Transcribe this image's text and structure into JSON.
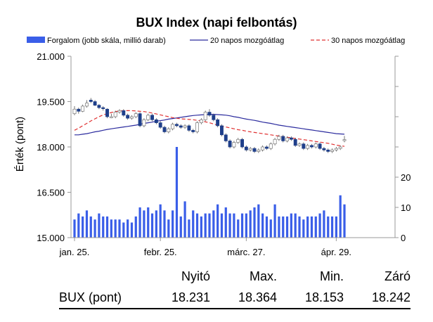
{
  "chart_data": {
    "type": "candlestick",
    "title": "BUX Index (napi felbontás)",
    "ylabel": "Érték (pont)",
    "left_axis": {
      "ticks": [
        "21.000",
        "19.500",
        "18.000",
        "16.500",
        "15.000"
      ],
      "tick_values": [
        21000,
        19500,
        18000,
        16500,
        15000
      ],
      "ylim": [
        15000,
        21000
      ]
    },
    "right_axis": {
      "ticks": [
        "20",
        "10",
        "0"
      ],
      "tick_values": [
        20,
        10,
        0
      ],
      "ylim": [
        0,
        60
      ]
    },
    "x_ticks": [
      "jan. 25.",
      "febr. 25.",
      "márc. 27.",
      "ápr. 29."
    ],
    "x_tick_indices": [
      0,
      21,
      42,
      64
    ],
    "legend": [
      {
        "label": "Forgalom (jobb skála, millió darab)",
        "kind": "bar",
        "color": "#3a5ee8"
      },
      {
        "label": "20 napos mozgóátlag",
        "kind": "line",
        "color": "#2b2b9e"
      },
      {
        "label": "30 napos mozgóátlag",
        "kind": "dashed",
        "color": "#e03030"
      }
    ],
    "colors": {
      "down": "#1f3f8a",
      "up": "#ffffff",
      "volume": "#3a5ee8",
      "ma20": "#2b2b9e",
      "ma30": "#e03030"
    },
    "close": [
      19250,
      19180,
      19350,
      19450,
      19500,
      19380,
      19300,
      19280,
      19000,
      19000,
      19150,
      19200,
      19050,
      18950,
      19000,
      19100,
      18700,
      18900,
      19050,
      18900,
      18800,
      18650,
      18500,
      18600,
      18750,
      18700,
      18650,
      18700,
      18550,
      18500,
      18800,
      18900,
      19150,
      19050,
      18900,
      18700,
      18400,
      18200,
      18000,
      18150,
      18250,
      18000,
      17900,
      17950,
      17850,
      17900,
      18000,
      17950,
      18100,
      18250,
      18350,
      18200,
      18300,
      18250,
      18050,
      18100,
      17950,
      18050,
      18000,
      18100,
      17950,
      17900,
      17850,
      17900,
      17950,
      18000,
      18242
    ],
    "open": [
      19100,
      19250,
      19180,
      19350,
      19550,
      19500,
      19380,
      19300,
      19250,
      19000,
      19000,
      19150,
      19200,
      19050,
      18950,
      19000,
      19100,
      18700,
      18900,
      19050,
      18900,
      18800,
      18650,
      18500,
      18600,
      18750,
      18700,
      18650,
      18700,
      18550,
      18500,
      18800,
      18900,
      19150,
      19050,
      18900,
      18700,
      18400,
      18200,
      18000,
      18150,
      18250,
      18000,
      17900,
      17950,
      17850,
      17900,
      18000,
      17950,
      18100,
      18250,
      18350,
      18200,
      18300,
      18250,
      18050,
      18100,
      17950,
      18050,
      18000,
      18100,
      17950,
      17900,
      17850,
      17900,
      17950,
      18231
    ],
    "high": [
      19350,
      19300,
      19400,
      19550,
      19620,
      19550,
      19420,
      19350,
      19280,
      19100,
      19200,
      19250,
      19250,
      19100,
      19050,
      19150,
      19150,
      18950,
      19100,
      19100,
      18950,
      18850,
      18700,
      18650,
      18800,
      18800,
      18750,
      18750,
      18750,
      18600,
      18850,
      18950,
      19200,
      19250,
      19100,
      18950,
      18750,
      18450,
      18250,
      18200,
      18300,
      18300,
      18050,
      18000,
      18000,
      17950,
      18050,
      18050,
      18150,
      18300,
      18400,
      18400,
      18350,
      18350,
      18300,
      18150,
      18150,
      18100,
      18100,
      18150,
      18150,
      18000,
      17950,
      17950,
      18000,
      18050,
      18364
    ],
    "low": [
      19050,
      19100,
      19150,
      19300,
      19450,
      19350,
      19250,
      19200,
      18950,
      18950,
      18950,
      19100,
      19000,
      18900,
      18900,
      18950,
      18650,
      18650,
      18850,
      18850,
      18750,
      18600,
      18450,
      18450,
      18550,
      18650,
      18600,
      18600,
      18500,
      18450,
      18450,
      18750,
      18850,
      19000,
      18850,
      18650,
      18350,
      18150,
      17950,
      17950,
      18100,
      17950,
      17850,
      17850,
      17800,
      17800,
      17850,
      17900,
      17900,
      18050,
      18200,
      18150,
      18150,
      18200,
      18000,
      18000,
      17900,
      17900,
      17950,
      17950,
      17900,
      17850,
      17800,
      17800,
      17850,
      17900,
      18153
    ],
    "volume": [
      6,
      8,
      7,
      9,
      7,
      6,
      8,
      7,
      7,
      6,
      6,
      6,
      5,
      6,
      5,
      7,
      10,
      9,
      10,
      8,
      9,
      11,
      9,
      6,
      9,
      30,
      7,
      12,
      6,
      9,
      8,
      7,
      8,
      8,
      9,
      11,
      8,
      10,
      8,
      8,
      6,
      8,
      8,
      9,
      10,
      11,
      8,
      7,
      6,
      11,
      7,
      7,
      7,
      8,
      8,
      7,
      6,
      7,
      7,
      7,
      8,
      9,
      7,
      7,
      7,
      14,
      11
    ],
    "ma20": [
      18400,
      18400,
      18420,
      18440,
      18470,
      18500,
      18520,
      18550,
      18580,
      18600,
      18620,
      18640,
      18660,
      18680,
      18700,
      18720,
      18750,
      18780,
      18800,
      18820,
      18850,
      18870,
      18890,
      18920,
      18940,
      18960,
      18980,
      19000,
      19020,
      19040,
      19050,
      19060,
      19070,
      19080,
      19080,
      19070,
      19060,
      19050,
      19030,
      19000,
      18980,
      18950,
      18920,
      18900,
      18880,
      18850,
      18820,
      18800,
      18780,
      18750,
      18720,
      18700,
      18680,
      18660,
      18640,
      18620,
      18600,
      18580,
      18560,
      18540,
      18520,
      18500,
      18480,
      18460,
      18440,
      18430,
      18420
    ],
    "ma30": [
      18550,
      18620,
      18700,
      18780,
      18860,
      18930,
      19000,
      19060,
      19100,
      19140,
      19170,
      19190,
      19200,
      19200,
      19200,
      19190,
      19180,
      19170,
      19150,
      19120,
      19090,
      19060,
      19030,
      19000,
      18970,
      18950,
      18930,
      18920,
      18910,
      18900,
      18880,
      18860,
      18830,
      18800,
      18760,
      18720,
      18690,
      18660,
      18630,
      18600,
      18570,
      18550,
      18520,
      18500,
      18480,
      18460,
      18440,
      18420,
      18400,
      18380,
      18360,
      18340,
      18320,
      18300,
      18280,
      18260,
      18240,
      18220,
      18200,
      18180,
      18160,
      18140,
      18120,
      18090,
      18060,
      18040,
      18020
    ]
  },
  "stats": {
    "headers": [
      "Nyitó",
      "Max.",
      "Min.",
      "Záró"
    ],
    "row_label": "BUX (pont)",
    "values": [
      "18.231",
      "18.364",
      "18.153",
      "18.242"
    ]
  }
}
